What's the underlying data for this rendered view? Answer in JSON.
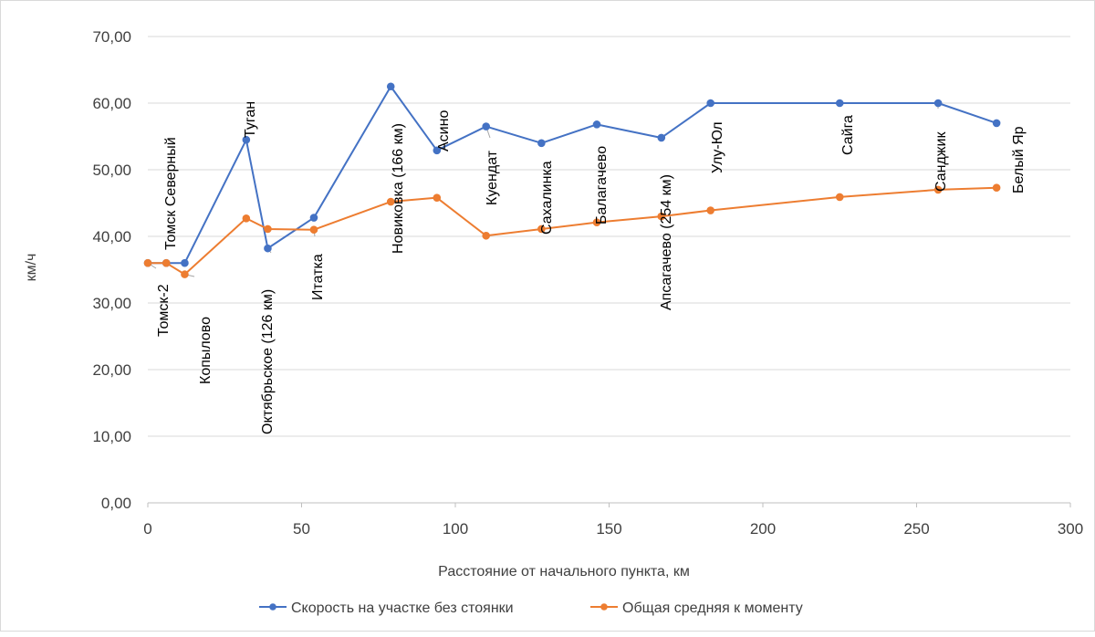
{
  "chart_data": {
    "type": "line",
    "title": "",
    "xlabel": "Расстояние от начального пункта, км",
    "ylabel": "км/ч",
    "xlim": [
      0,
      300
    ],
    "ylim": [
      0,
      70
    ],
    "x_ticks": [
      "0",
      "50",
      "100",
      "150",
      "200",
      "250",
      "300"
    ],
    "y_ticks": [
      "0,00",
      "10,00",
      "20,00",
      "30,00",
      "40,00",
      "50,00",
      "60,00",
      "70,00"
    ],
    "grid": "horizontal",
    "legend_position": "bottom",
    "series": [
      {
        "name": "Скорость на участке без стоянки",
        "color": "#4472c4",
        "points": [
          {
            "x": 0,
            "y": 36.0
          },
          {
            "x": 6,
            "y": 36.0
          },
          {
            "x": 12,
            "y": 36.0
          },
          {
            "x": 32,
            "y": 54.5
          },
          {
            "x": 39,
            "y": 38.2
          },
          {
            "x": 54,
            "y": 42.8
          },
          {
            "x": 79,
            "y": 62.5
          },
          {
            "x": 94,
            "y": 52.9
          },
          {
            "x": 110,
            "y": 56.5
          },
          {
            "x": 128,
            "y": 54.0
          },
          {
            "x": 146,
            "y": 56.8
          },
          {
            "x": 167,
            "y": 54.8
          },
          {
            "x": 183,
            "y": 60.0
          },
          {
            "x": 225,
            "y": 60.0
          },
          {
            "x": 257,
            "y": 60.0
          },
          {
            "x": 276,
            "y": 57.0
          }
        ]
      },
      {
        "name": "Общая средняя к моменту",
        "color": "#ed7d31",
        "points": [
          {
            "x": 0,
            "y": 36.0
          },
          {
            "x": 6,
            "y": 36.0
          },
          {
            "x": 12,
            "y": 34.3
          },
          {
            "x": 32,
            "y": 42.7
          },
          {
            "x": 39,
            "y": 41.1
          },
          {
            "x": 54,
            "y": 41.0
          },
          {
            "x": 79,
            "y": 45.2
          },
          {
            "x": 94,
            "y": 45.8
          },
          {
            "x": 110,
            "y": 40.1
          },
          {
            "x": 128,
            "y": 41.1
          },
          {
            "x": 146,
            "y": 42.1
          },
          {
            "x": 167,
            "y": 43.0
          },
          {
            "x": 183,
            "y": 43.9
          },
          {
            "x": 225,
            "y": 45.9
          },
          {
            "x": 257,
            "y": 47.0
          },
          {
            "x": 276,
            "y": 47.3
          }
        ]
      }
    ],
    "annotations": [
      {
        "text": "Томск-2",
        "x": 0,
        "y": 36.0
      },
      {
        "text": "Томск Северный",
        "x": 6,
        "y": 36.0
      },
      {
        "text": "Копылово",
        "x": 12,
        "y": 34.3
      },
      {
        "text": "Туган",
        "x": 32,
        "y": 54.5
      },
      {
        "text": "Октябрьское (126 км)",
        "x": 39,
        "y": 38.2
      },
      {
        "text": "Итатка",
        "x": 54,
        "y": 41.0
      },
      {
        "text": "Новиковка (166 км)",
        "x": 79,
        "y": 62.5
      },
      {
        "text": "Асино",
        "x": 94,
        "y": 52.9
      },
      {
        "text": "Куендат",
        "x": 110,
        "y": 56.5
      },
      {
        "text": "Сахалинка",
        "x": 128,
        "y": 41.1
      },
      {
        "text": "Балагачево",
        "x": 146,
        "y": 56.8
      },
      {
        "text": "Апсагачево (254 км)",
        "x": 167,
        "y": 54.8
      },
      {
        "text": "Улу-Юл",
        "x": 183,
        "y": 60.0
      },
      {
        "text": "Сайга",
        "x": 225,
        "y": 60.0
      },
      {
        "text": "Санджик",
        "x": 257,
        "y": 60.0
      },
      {
        "text": "Белый Яр",
        "x": 276,
        "y": 57.0
      }
    ]
  }
}
